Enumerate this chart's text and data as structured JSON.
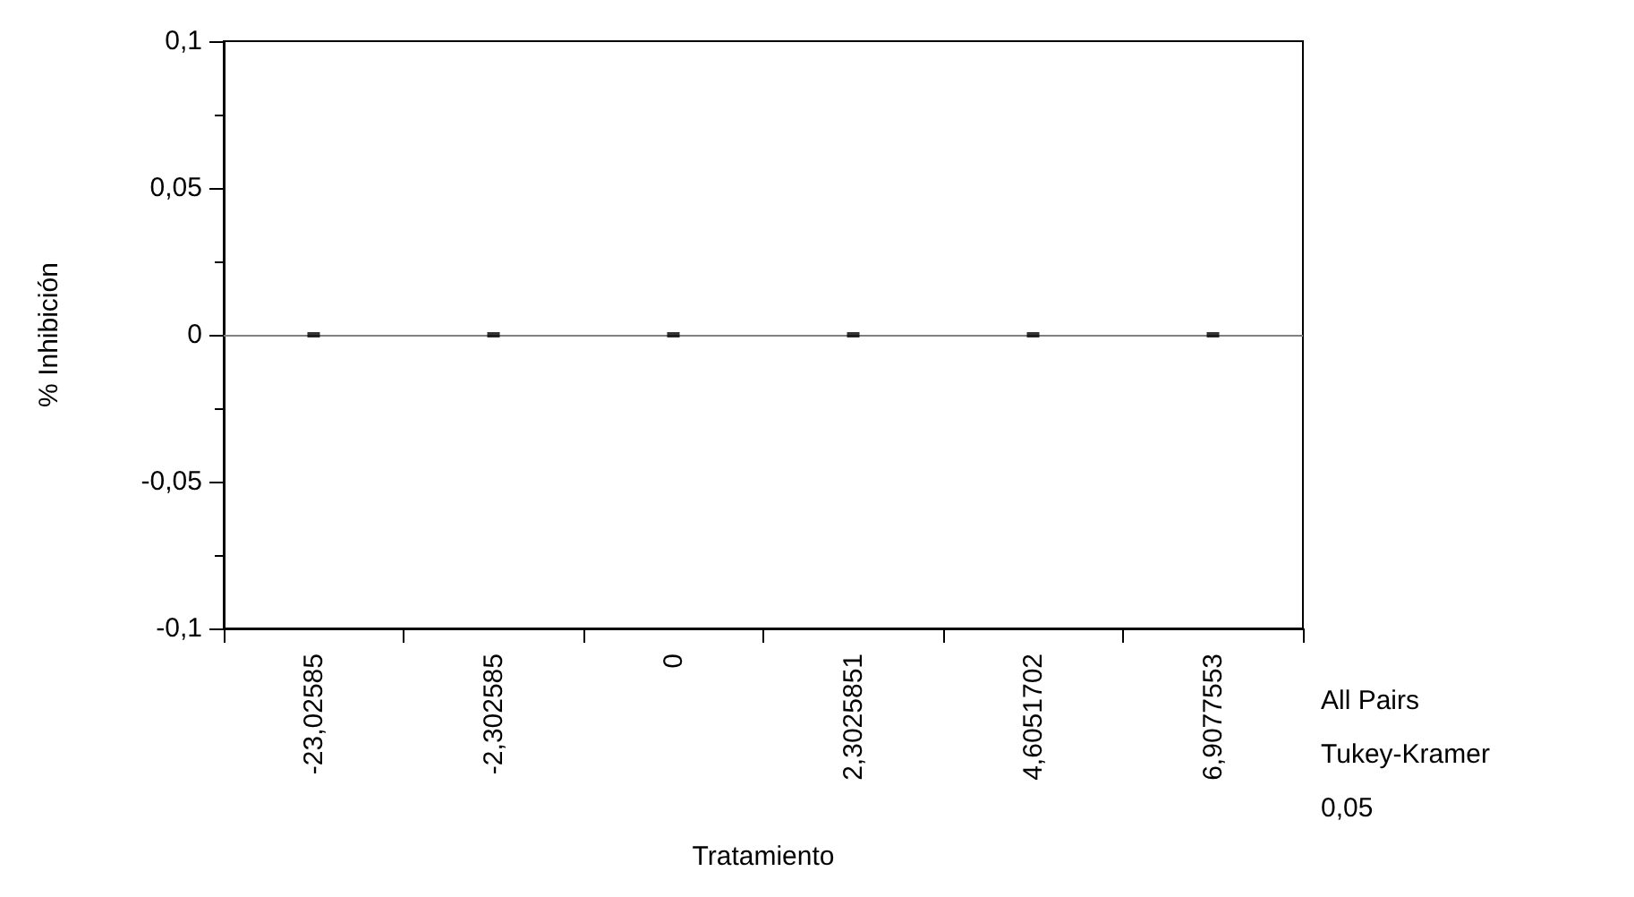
{
  "chart_data": {
    "type": "scatter",
    "xlabel": "Tratamiento",
    "ylabel": "% Inhibición",
    "categories": [
      "-23,02585",
      "-2,302585",
      "0",
      "2,3025851",
      "4,6051702",
      "6,9077553"
    ],
    "values": [
      0,
      0,
      0,
      0,
      0,
      0
    ],
    "color": "#000000",
    "marker": "square",
    "ylim": [
      -0.1,
      0.1
    ],
    "yticks": [
      {
        "value": -0.1,
        "label": "-0,1"
      },
      {
        "value": -0.05,
        "label": "-0,05"
      },
      {
        "value": 0,
        "label": "0"
      },
      {
        "value": 0.05,
        "label": "0,05"
      },
      {
        "value": 0.1,
        "label": "0,1"
      }
    ],
    "ref_lines": [
      {
        "axis": "y",
        "value": 0,
        "color": "#808080"
      }
    ],
    "annotations": [
      "All Pairs",
      "Tukey-Kramer",
      "0,05"
    ]
  }
}
